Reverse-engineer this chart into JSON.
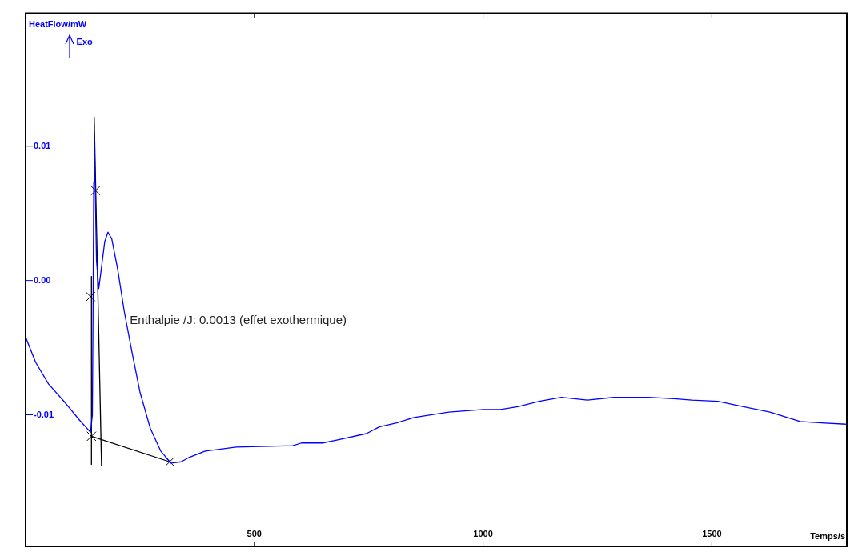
{
  "chart_data": {
    "type": "line",
    "xlabel": "Temps/s",
    "ylabel": "HeatFlow/mW",
    "xlim": [
      0,
      1795
    ],
    "ylim": [
      -0.0198,
      0.0199
    ],
    "xticks": [
      500,
      1000,
      1500
    ],
    "yticks": [
      {
        "value": -0.01,
        "label": "-0.01"
      },
      {
        "value": 0,
        "label": "0.00"
      },
      {
        "value": 0.01,
        "label": "0.01"
      }
    ],
    "grid": false,
    "legend": false,
    "marker": "none",
    "line_style": "solid",
    "annotations": [
      "Enthalpie /J: 0.0013 (effet exothermique)",
      "Exo"
    ],
    "series": [
      {
        "color": "#0000ff",
        "x": [
          1,
          22,
          50,
          84,
          118,
          142,
          146,
          147.4,
          149,
          150.3,
          152,
          155,
          160,
          164.5,
          173,
          180,
          188.4,
          201.5,
          215.7,
          233,
          250,
          272.5,
          295.4,
          318,
          340,
          356,
          393,
          460,
          584,
          603,
          649,
          678,
          745,
          773,
          811,
          849,
          925,
          1001,
          1038,
          1076,
          1123,
          1171,
          1228,
          1286,
          1361,
          1417,
          1456,
          1513,
          1569,
          1627,
          1693,
          1740,
          1793
        ],
        "values": [
          -0.0043,
          -0.0061,
          -0.0077,
          -0.009,
          -0.0104,
          -0.0113,
          -0.01,
          -0.0027,
          0.0073,
          0.0108,
          0.0073,
          0.0015,
          -0.0006,
          0.0006,
          0.0029,
          0.0036,
          0.0031,
          0.0008,
          -0.0023,
          -0.0054,
          -0.0083,
          -0.011,
          -0.0127,
          -0.0136,
          -0.0135,
          -0.0132,
          -0.0127,
          -0.0124,
          -0.0123,
          -0.0121,
          -0.0121,
          -0.0119,
          -0.0114,
          -0.0109,
          -0.0106,
          -0.0102,
          -0.0098,
          -0.0096,
          -0.0096,
          -0.0094,
          -0.009,
          -0.0087,
          -0.0089,
          -0.0087,
          -0.0087,
          -0.0088,
          -0.0089,
          -0.009,
          -0.0094,
          -0.0098,
          -0.0105,
          -0.0106,
          -0.0107
        ]
      },
      {
        "type": "line",
        "color": "#000000",
        "x": [
          144,
          315
        ],
        "values": [
          -0.0116,
          -0.0135
        ]
      },
      {
        "type": "line",
        "color": "#000000",
        "x": [
          150,
          166
        ],
        "values": [
          0.0122,
          -0.0138
        ]
      },
      {
        "type": "line",
        "color": "#000000",
        "x": [
          144,
          144
        ],
        "values": [
          0.0003,
          -0.0137
        ]
      },
      {
        "type": "scatter",
        "color": "#000000",
        "marker": "cross",
        "x": [
          153,
          142,
          144,
          315
        ],
        "values": [
          0.0067,
          -0.0012,
          -0.0116,
          -0.0135
        ]
      }
    ]
  }
}
